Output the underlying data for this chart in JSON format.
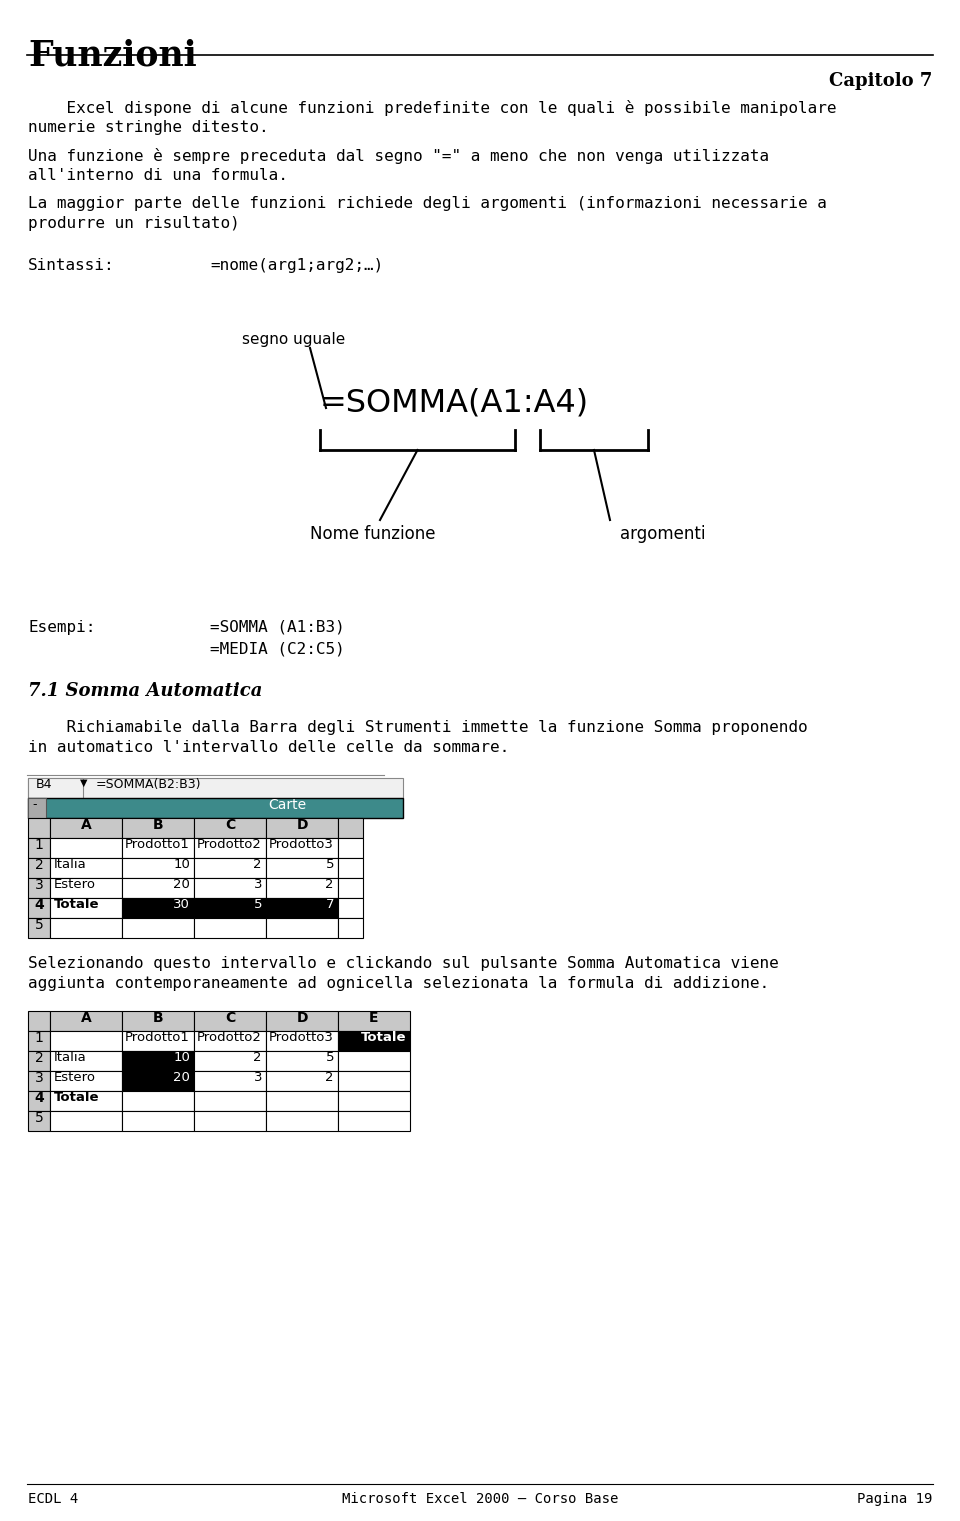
{
  "title": "Funzioni",
  "chapter": "Capitolo 7",
  "bg_color": "#ffffff",
  "text_color": "#000000",
  "para1_indent": "    Excel dispone di alcune funzioni predefinite con le quali è possibile manipolare",
  "para1_cont": "numerie stringhe ditesto.",
  "para2_line1": "Una funzione è sempre preceduta dal segno \"=\" a meno che non venga utilizzata",
  "para2_line2": "all'interno di una formula.",
  "para3_line1": "La maggior parte delle funzioni richiede degli argomenti (informazioni necessarie a",
  "para3_line2": "produrre un risultato)",
  "sintassi_label": "Sintassi:",
  "sintassi_value": "=nome(arg1;arg2;…)",
  "segno_uguale": "segno uguale",
  "formula": "=SOMMA(A1:A4)",
  "nome_funzione": "Nome funzione",
  "argomenti": "argomenti",
  "esempi_label": "Esempi:",
  "esempi_val1": "=SOMMA (A1:B3)",
  "esempi_val2": "=MEDIA (C2:C5)",
  "section_title": "7.1 Somma Automatica",
  "section_para1_indent": "    Richiamabile dalla Barra degli Strumenti immette la funzione Somma proponendo",
  "section_para1_cont": "in automatico l'intervallo delle celle da sommare.",
  "section_para2_line1": "Selezionando questo intervallo e clickando sul pulsante Somma Automatica viene",
  "section_para2_line2": "aggiunta contemporaneamente ad ognicella selezionata la formula di addizione.",
  "footer_left": "ECDL 4",
  "footer_center": "Microsoft Excel 2000 – Corso Base",
  "footer_right": "Pagina 19",
  "table1_formula_bar": "=SOMMA(B2:B3)",
  "table1_cell_ref": "B4",
  "table1_header": "Carte",
  "teal_color": "#3d8a8a",
  "selected_bg": "#000000",
  "selected_fg": "#ffffff",
  "gray_header": "#c8c8c8",
  "gray_rownum": "#c8c8c8"
}
